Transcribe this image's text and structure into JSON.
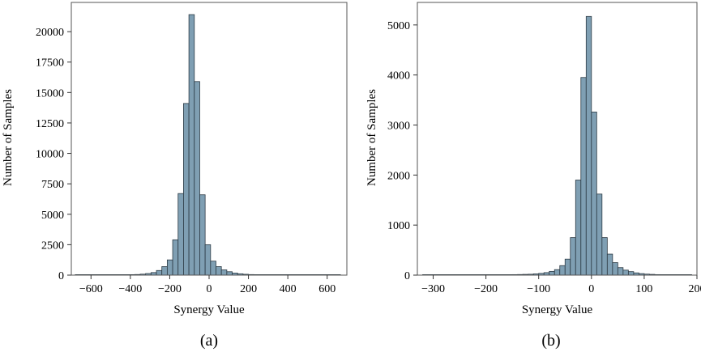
{
  "colors": {
    "bar_fill": "#7f9fb3",
    "bar_stroke": "#2c3a44",
    "frame": "#555555"
  },
  "chart_data": [
    {
      "type": "bar",
      "panel_label": "(a)",
      "xlabel": "Synergy Value",
      "ylabel": "Number of Samples",
      "xlim": [
        -700,
        700
      ],
      "ylim": [
        0,
        22400
      ],
      "xticks": [
        -600,
        -400,
        -200,
        0,
        200,
        400,
        600
      ],
      "yticks": [
        0,
        2500,
        5000,
        7500,
        10000,
        12500,
        15000,
        17500,
        20000
      ],
      "grid": false,
      "bin_width": 27.5,
      "bins_start": [
        -680,
        -652.5,
        -625,
        -597.5,
        -570,
        -542.5,
        -515,
        -487.5,
        -460,
        -432.5,
        -405,
        -377.5,
        -350,
        -322.5,
        -295,
        -267.5,
        -240,
        -212.5,
        -185,
        -157.5,
        -130,
        -102.5,
        -75,
        -47.5,
        -20,
        7.5,
        35,
        62.5,
        90,
        117.5,
        145,
        172.5,
        200,
        227.5,
        255,
        282.5,
        310,
        337.5,
        365,
        392.5,
        420,
        447.5,
        475,
        502.5,
        530,
        557.5,
        585,
        612.5,
        640
      ],
      "values": [
        3,
        3,
        4,
        5,
        6,
        8,
        10,
        12,
        15,
        20,
        30,
        50,
        80,
        130,
        210,
        380,
        700,
        1250,
        2900,
        6700,
        14100,
        21400,
        15900,
        6600,
        2500,
        1150,
        700,
        430,
        280,
        170,
        110,
        70,
        45,
        30,
        20,
        14,
        10,
        8,
        6,
        5,
        4,
        3,
        3,
        2,
        2,
        2,
        2,
        2,
        2
      ]
    },
    {
      "type": "bar",
      "panel_label": "(b)",
      "xlabel": "Synergy Value",
      "ylabel": "Number of Samples",
      "xlim": [
        -330,
        200
      ],
      "ylim": [
        0,
        5450
      ],
      "xticks": [
        -300,
        -200,
        -100,
        0,
        100,
        200
      ],
      "yticks": [
        0,
        1000,
        2000,
        3000,
        4000,
        5000
      ],
      "grid": false,
      "bin_width": 10,
      "bins_start": [
        -320,
        -310,
        -300,
        -290,
        -280,
        -270,
        -260,
        -250,
        -240,
        -230,
        -220,
        -210,
        -200,
        -190,
        -180,
        -170,
        -160,
        -150,
        -140,
        -130,
        -120,
        -110,
        -100,
        -90,
        -80,
        -70,
        -60,
        -50,
        -40,
        -30,
        -20,
        -10,
        0,
        10,
        20,
        30,
        40,
        50,
        60,
        70,
        80,
        90,
        100,
        110,
        120,
        130,
        140,
        150,
        160,
        170,
        180
      ],
      "values": [
        2,
        2,
        2,
        2,
        2,
        2,
        2,
        3,
        3,
        3,
        3,
        4,
        5,
        5,
        6,
        6,
        8,
        10,
        12,
        15,
        18,
        25,
        35,
        50,
        75,
        110,
        190,
        320,
        750,
        1900,
        3950,
        5170,
        3260,
        1620,
        750,
        420,
        250,
        150,
        100,
        70,
        45,
        30,
        20,
        15,
        10,
        8,
        6,
        5,
        4,
        3,
        2
      ]
    }
  ]
}
